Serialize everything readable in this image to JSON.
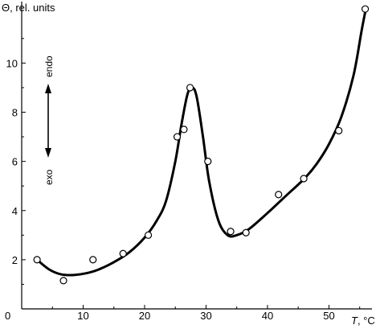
{
  "chart_data": {
    "type": "scatter",
    "title": "",
    "ylabel": "Θ, rel. units",
    "xlabel_italic": "T",
    "xlabel_rest": ", °C",
    "xlim": [
      0,
      57
    ],
    "ylim": [
      0,
      12.5
    ],
    "xticks": [
      0,
      10,
      20,
      30,
      40,
      50
    ],
    "yticks": [
      2,
      4,
      6,
      8,
      10
    ],
    "grid": false,
    "annotations": {
      "endo": "endo",
      "exo": "exo"
    },
    "series": [
      {
        "kind": "points",
        "x": [
          2.5,
          6.8,
          11.6,
          16.5,
          20.6,
          25.3,
          26.4,
          27.4,
          30.3,
          34.0,
          36.5,
          41.8,
          45.9,
          51.6,
          55.9
        ],
        "y": [
          2.0,
          1.15,
          2.0,
          2.25,
          3.0,
          7.0,
          7.3,
          9.0,
          6.0,
          3.15,
          3.1,
          4.65,
          5.3,
          7.25,
          12.2
        ]
      },
      {
        "kind": "curve",
        "x": [
          2.5,
          4.5,
          6.5,
          8.5,
          10.5,
          12.5,
          15,
          17.5,
          20,
          22,
          23.5,
          25,
          26,
          27,
          27.8,
          28.5,
          29.5,
          30.5,
          32,
          33.5,
          35,
          37,
          40,
          43,
          46,
          48,
          50,
          52,
          54,
          55.3,
          56
        ],
        "y": [
          2.0,
          1.6,
          1.4,
          1.38,
          1.45,
          1.6,
          1.9,
          2.3,
          2.9,
          3.6,
          4.4,
          6.0,
          7.5,
          8.75,
          9.0,
          8.6,
          7.0,
          5.2,
          3.6,
          3.0,
          3.0,
          3.25,
          3.9,
          4.6,
          5.3,
          5.9,
          6.7,
          7.8,
          9.5,
          11.3,
          12.2
        ]
      }
    ]
  }
}
